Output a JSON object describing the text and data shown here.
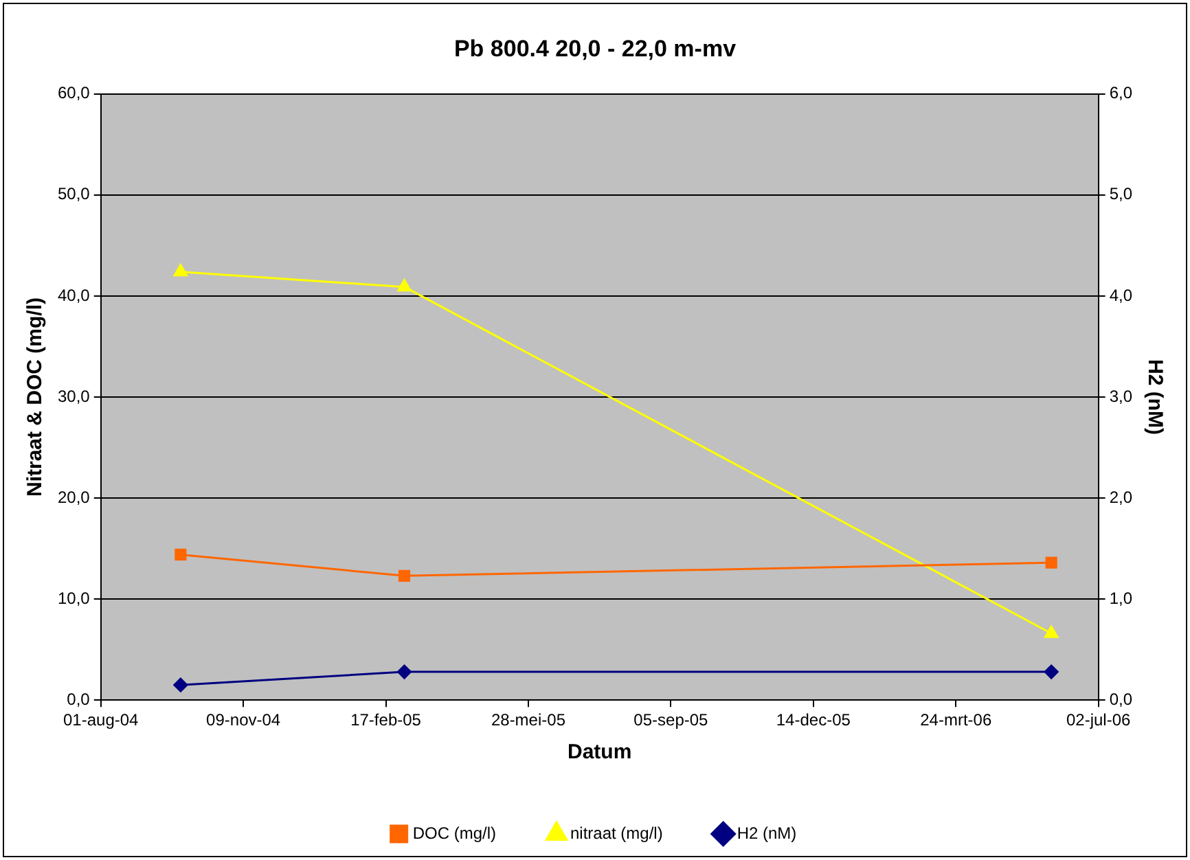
{
  "chart_data": {
    "type": "line",
    "title": "Pb 800.4 20,0 - 22,0 m-mv",
    "xlabel": "Datum",
    "ylabel": "Nitraat & DOC (mg/l)",
    "y2label": "H2 (nM)",
    "x": [
      "2004-09-26",
      "2005-03-02",
      "2006-05-30"
    ],
    "series": [
      {
        "name": "DOC (mg/l)",
        "color": "#ff6600",
        "marker": "square",
        "values": [
          14.4,
          12.3,
          13.6
        ]
      },
      {
        "name": "nitraat (mg/l)",
        "color": "#ffff00",
        "marker": "triangle",
        "values": [
          42.4,
          40.9,
          6.6
        ]
      },
      {
        "name": "H2 (nM)",
        "color": "#000080",
        "marker": "diamond",
        "axis": "y2",
        "values": [
          0.15,
          0.28,
          0.28
        ]
      }
    ],
    "xlim": [
      "2004-08-01",
      "2006-07-02"
    ],
    "xticks": [
      {
        "value": "2004-08-01",
        "label": "01-aug-04"
      },
      {
        "value": "2004-11-09",
        "label": "09-nov-04"
      },
      {
        "value": "2005-02-17",
        "label": "17-feb-05"
      },
      {
        "value": "2005-05-28",
        "label": "28-mei-05"
      },
      {
        "value": "2005-09-05",
        "label": "05-sep-05"
      },
      {
        "value": "2005-12-14",
        "label": "14-dec-05"
      },
      {
        "value": "2006-03-24",
        "label": "24-mrt-06"
      },
      {
        "value": "2006-07-02",
        "label": "02-jul-06"
      }
    ],
    "ylim": [
      0,
      60
    ],
    "yticks": [
      {
        "value": 0,
        "label": "0,0"
      },
      {
        "value": 10,
        "label": "10,0"
      },
      {
        "value": 20,
        "label": "20,0"
      },
      {
        "value": 30,
        "label": "30,0"
      },
      {
        "value": 40,
        "label": "40,0"
      },
      {
        "value": 50,
        "label": "50,0"
      },
      {
        "value": 60,
        "label": "60,0"
      }
    ],
    "y2lim": [
      0,
      6
    ],
    "y2ticks": [
      {
        "value": 0,
        "label": "0,0"
      },
      {
        "value": 1,
        "label": "1,0"
      },
      {
        "value": 2,
        "label": "2,0"
      },
      {
        "value": 3,
        "label": "3,0"
      },
      {
        "value": 4,
        "label": "4,0"
      },
      {
        "value": 5,
        "label": "5,0"
      },
      {
        "value": 6,
        "label": "6,0"
      }
    ],
    "grid": "y",
    "legend": "bottom",
    "line_style": "solid"
  }
}
